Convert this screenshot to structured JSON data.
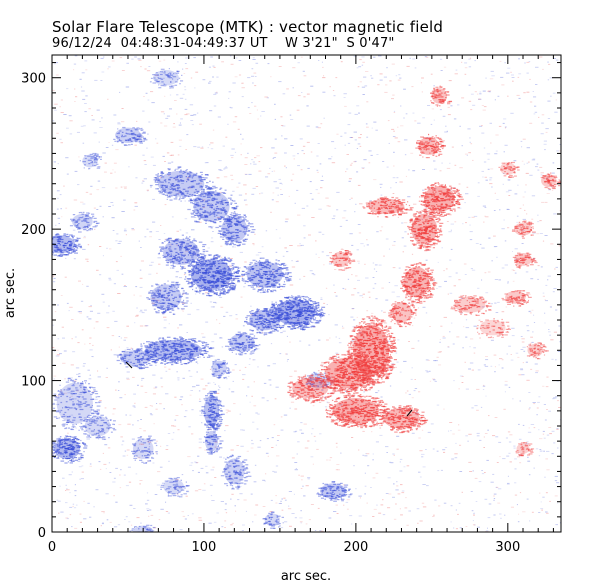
{
  "header": {
    "title": "Solar Flare Telescope (MTK) : vector magnetic field",
    "subtitle": "96/12/24  04:48:31-04:49:37 UT    W 3'21\"  S 0'47\""
  },
  "chart_data": {
    "type": "heatmap",
    "title": "Solar Flare Telescope (MTK) : vector magnetic field",
    "subtitle": "96/12/24  04:48:31-04:49:37 UT    W 3'21\"  S 0'47\"",
    "xlabel": "arc sec.",
    "ylabel": "arc sec.",
    "xlim": [
      0,
      335
    ],
    "ylim": [
      0,
      315
    ],
    "xticks": [
      0,
      100,
      200,
      300
    ],
    "yticks": [
      0,
      100,
      200,
      300
    ],
    "x_minor_step": 10,
    "y_minor_step": 10,
    "grid": false,
    "colors": {
      "negative_polarity": "#3b4fd8",
      "positive_polarity": "#f03c3c",
      "noise_blue": "#8a96e6",
      "noise_red": "#f19a9a",
      "background": "#ffffff"
    },
    "regions": [
      {
        "polarity": "negative",
        "x": 5,
        "y": 190,
        "rx": 12,
        "ry": 7,
        "intensity": 0.8
      },
      {
        "polarity": "negative",
        "x": 20,
        "y": 205,
        "rx": 8,
        "ry": 6,
        "intensity": 0.4
      },
      {
        "polarity": "negative",
        "x": 50,
        "y": 262,
        "rx": 10,
        "ry": 6,
        "intensity": 0.45
      },
      {
        "polarity": "negative",
        "x": 25,
        "y": 245,
        "rx": 6,
        "ry": 5,
        "intensity": 0.3
      },
      {
        "polarity": "negative",
        "x": 75,
        "y": 300,
        "rx": 10,
        "ry": 6,
        "intensity": 0.3
      },
      {
        "polarity": "negative",
        "x": 85,
        "y": 230,
        "rx": 18,
        "ry": 10,
        "intensity": 0.55
      },
      {
        "polarity": "negative",
        "x": 105,
        "y": 215,
        "rx": 14,
        "ry": 12,
        "intensity": 0.55
      },
      {
        "polarity": "negative",
        "x": 105,
        "y": 170,
        "rx": 16,
        "ry": 12,
        "intensity": 0.95
      },
      {
        "polarity": "negative",
        "x": 85,
        "y": 185,
        "rx": 14,
        "ry": 10,
        "intensity": 0.6
      },
      {
        "polarity": "negative",
        "x": 75,
        "y": 155,
        "rx": 12,
        "ry": 10,
        "intensity": 0.55
      },
      {
        "polarity": "negative",
        "x": 120,
        "y": 200,
        "rx": 10,
        "ry": 10,
        "intensity": 0.6
      },
      {
        "polarity": "negative",
        "x": 140,
        "y": 170,
        "rx": 14,
        "ry": 10,
        "intensity": 0.7
      },
      {
        "polarity": "negative",
        "x": 160,
        "y": 145,
        "rx": 16,
        "ry": 10,
        "intensity": 0.95
      },
      {
        "polarity": "negative",
        "x": 140,
        "y": 140,
        "rx": 12,
        "ry": 8,
        "intensity": 0.7
      },
      {
        "polarity": "negative",
        "x": 125,
        "y": 125,
        "rx": 10,
        "ry": 7,
        "intensity": 0.55
      },
      {
        "polarity": "negative",
        "x": 80,
        "y": 120,
        "rx": 22,
        "ry": 8,
        "intensity": 0.8
      },
      {
        "polarity": "negative",
        "x": 55,
        "y": 115,
        "rx": 12,
        "ry": 6,
        "intensity": 0.55
      },
      {
        "polarity": "negative",
        "x": 110,
        "y": 108,
        "rx": 6,
        "ry": 6,
        "intensity": 0.45
      },
      {
        "polarity": "negative",
        "x": 105,
        "y": 80,
        "rx": 6,
        "ry": 12,
        "intensity": 0.75
      },
      {
        "polarity": "negative",
        "x": 105,
        "y": 60,
        "rx": 5,
        "ry": 8,
        "intensity": 0.5
      },
      {
        "polarity": "negative",
        "x": 120,
        "y": 40,
        "rx": 8,
        "ry": 10,
        "intensity": 0.45
      },
      {
        "polarity": "negative",
        "x": 15,
        "y": 85,
        "rx": 14,
        "ry": 16,
        "intensity": 0.35
      },
      {
        "polarity": "negative",
        "x": 10,
        "y": 55,
        "rx": 10,
        "ry": 8,
        "intensity": 0.85
      },
      {
        "polarity": "negative",
        "x": 30,
        "y": 70,
        "rx": 10,
        "ry": 8,
        "intensity": 0.35
      },
      {
        "polarity": "negative",
        "x": 60,
        "y": 55,
        "rx": 8,
        "ry": 8,
        "intensity": 0.35
      },
      {
        "polarity": "negative",
        "x": 80,
        "y": 30,
        "rx": 8,
        "ry": 6,
        "intensity": 0.3
      },
      {
        "polarity": "negative",
        "x": 60,
        "y": 0,
        "rx": 8,
        "ry": 5,
        "intensity": 0.4
      },
      {
        "polarity": "negative",
        "x": 185,
        "y": 27,
        "rx": 10,
        "ry": 6,
        "intensity": 0.6
      },
      {
        "polarity": "negative",
        "x": 145,
        "y": 8,
        "rx": 6,
        "ry": 5,
        "intensity": 0.35
      },
      {
        "polarity": "negative",
        "x": 175,
        "y": 100,
        "rx": 8,
        "ry": 6,
        "intensity": 0.3
      },
      {
        "polarity": "positive",
        "x": 210,
        "y": 120,
        "rx": 14,
        "ry": 20,
        "intensity": 0.95
      },
      {
        "polarity": "positive",
        "x": 195,
        "y": 105,
        "rx": 18,
        "ry": 12,
        "intensity": 0.85
      },
      {
        "polarity": "positive",
        "x": 170,
        "y": 95,
        "rx": 14,
        "ry": 8,
        "intensity": 0.65
      },
      {
        "polarity": "positive",
        "x": 200,
        "y": 80,
        "rx": 18,
        "ry": 10,
        "intensity": 0.85
      },
      {
        "polarity": "positive",
        "x": 230,
        "y": 75,
        "rx": 14,
        "ry": 8,
        "intensity": 0.75
      },
      {
        "polarity": "positive",
        "x": 240,
        "y": 165,
        "rx": 10,
        "ry": 12,
        "intensity": 0.8
      },
      {
        "polarity": "positive",
        "x": 245,
        "y": 200,
        "rx": 10,
        "ry": 12,
        "intensity": 0.8
      },
      {
        "polarity": "positive",
        "x": 255,
        "y": 220,
        "rx": 12,
        "ry": 10,
        "intensity": 0.85
      },
      {
        "polarity": "positive",
        "x": 220,
        "y": 215,
        "rx": 14,
        "ry": 6,
        "intensity": 0.7
      },
      {
        "polarity": "positive",
        "x": 230,
        "y": 145,
        "rx": 8,
        "ry": 8,
        "intensity": 0.6
      },
      {
        "polarity": "positive",
        "x": 248,
        "y": 255,
        "rx": 8,
        "ry": 7,
        "intensity": 0.7
      },
      {
        "polarity": "positive",
        "x": 255,
        "y": 288,
        "rx": 6,
        "ry": 6,
        "intensity": 0.6
      },
      {
        "polarity": "positive",
        "x": 190,
        "y": 180,
        "rx": 7,
        "ry": 6,
        "intensity": 0.5
      },
      {
        "polarity": "positive",
        "x": 275,
        "y": 150,
        "rx": 12,
        "ry": 6,
        "intensity": 0.45
      },
      {
        "polarity": "positive",
        "x": 305,
        "y": 155,
        "rx": 8,
        "ry": 5,
        "intensity": 0.5
      },
      {
        "polarity": "positive",
        "x": 310,
        "y": 180,
        "rx": 7,
        "ry": 5,
        "intensity": 0.5
      },
      {
        "polarity": "positive",
        "x": 310,
        "y": 200,
        "rx": 7,
        "ry": 5,
        "intensity": 0.45
      },
      {
        "polarity": "positive",
        "x": 300,
        "y": 240,
        "rx": 6,
        "ry": 5,
        "intensity": 0.35
      },
      {
        "polarity": "positive",
        "x": 327,
        "y": 232,
        "rx": 6,
        "ry": 5,
        "intensity": 0.5
      },
      {
        "polarity": "positive",
        "x": 318,
        "y": 120,
        "rx": 6,
        "ry": 5,
        "intensity": 0.45
      },
      {
        "polarity": "positive",
        "x": 310,
        "y": 55,
        "rx": 5,
        "ry": 4,
        "intensity": 0.4
      },
      {
        "polarity": "positive",
        "x": 290,
        "y": 135,
        "rx": 10,
        "ry": 6,
        "intensity": 0.3
      }
    ]
  }
}
